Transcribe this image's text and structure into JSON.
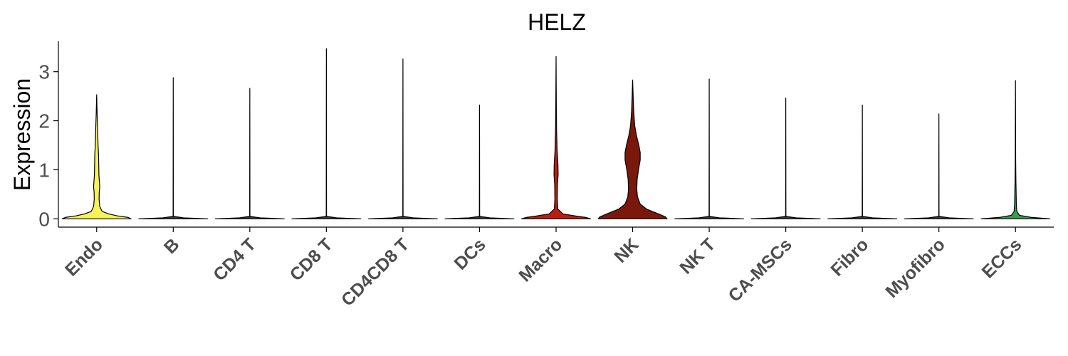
{
  "chart_data": {
    "type": "violin",
    "title": "HELZ",
    "xlabel": "",
    "ylabel": "Expression",
    "ylim": [
      -0.17,
      3.62
    ],
    "yticks": [
      0,
      1,
      2,
      3
    ],
    "grid": false,
    "legend": "none",
    "categories": [
      "Endo",
      "B",
      "CD4 T",
      "CD8 T",
      "CD4CD8 T",
      "DCs",
      "Macro",
      "NK",
      "NK T",
      "CA-MSCs",
      "Fibro",
      "Myofibro",
      "ECCs"
    ],
    "colors": [
      "#F7F15A",
      "#3A3A3A",
      "#3A3A3A",
      "#3A3A3A",
      "#3A3A3A",
      "#3A3A3A",
      "#B81E12",
      "#7A180C",
      "#3A3A3A",
      "#3A3A3A",
      "#3A3A3A",
      "#3A3A3A",
      "#3E9A52"
    ],
    "max_values": [
      2.53,
      2.88,
      2.66,
      3.47,
      3.26,
      2.32,
      3.31,
      2.83,
      2.85,
      2.46,
      2.32,
      2.14,
      2.82
    ],
    "density_profiles": [
      [
        [
          0,
          1.0
        ],
        [
          0.03,
          0.9
        ],
        [
          0.06,
          0.6
        ],
        [
          0.1,
          0.35
        ],
        [
          0.15,
          0.16
        ],
        [
          0.25,
          0.09
        ],
        [
          0.4,
          0.07
        ],
        [
          0.55,
          0.075
        ],
        [
          0.65,
          0.09
        ],
        [
          0.75,
          0.08
        ],
        [
          0.9,
          0.065
        ],
        [
          1.1,
          0.06
        ],
        [
          1.3,
          0.055
        ],
        [
          1.5,
          0.04
        ],
        [
          1.8,
          0.03
        ],
        [
          2.1,
          0.015
        ],
        [
          2.53,
          0.0
        ]
      ],
      [
        [
          0,
          1.0
        ],
        [
          0.02,
          0.3
        ],
        [
          0.05,
          0.004
        ],
        [
          2.88,
          0.0
        ]
      ],
      [
        [
          0,
          1.0
        ],
        [
          0.02,
          0.3
        ],
        [
          0.05,
          0.004
        ],
        [
          2.66,
          0.0
        ]
      ],
      [
        [
          0,
          1.0
        ],
        [
          0.02,
          0.3
        ],
        [
          0.05,
          0.004
        ],
        [
          3.47,
          0.0
        ]
      ],
      [
        [
          0,
          1.0
        ],
        [
          0.02,
          0.3
        ],
        [
          0.05,
          0.004
        ],
        [
          3.26,
          0.0
        ]
      ],
      [
        [
          0,
          1.0
        ],
        [
          0.02,
          0.3
        ],
        [
          0.05,
          0.004
        ],
        [
          2.32,
          0.0
        ]
      ],
      [
        [
          0,
          1.0
        ],
        [
          0.03,
          0.85
        ],
        [
          0.06,
          0.55
        ],
        [
          0.1,
          0.2
        ],
        [
          0.2,
          0.05
        ],
        [
          0.4,
          0.035
        ],
        [
          0.7,
          0.04
        ],
        [
          0.9,
          0.06
        ],
        [
          1.1,
          0.055
        ],
        [
          1.4,
          0.03
        ],
        [
          1.8,
          0.015
        ],
        [
          2.3,
          0.008
        ],
        [
          3.31,
          0.0
        ]
      ],
      [
        [
          0,
          1.0
        ],
        [
          0.04,
          0.95
        ],
        [
          0.1,
          0.75
        ],
        [
          0.2,
          0.4
        ],
        [
          0.3,
          0.22
        ],
        [
          0.45,
          0.14
        ],
        [
          0.6,
          0.12
        ],
        [
          0.8,
          0.13
        ],
        [
          1.0,
          0.17
        ],
        [
          1.2,
          0.22
        ],
        [
          1.35,
          0.22
        ],
        [
          1.5,
          0.18
        ],
        [
          1.7,
          0.11
        ],
        [
          1.9,
          0.06
        ],
        [
          2.2,
          0.03
        ],
        [
          2.5,
          0.015
        ],
        [
          2.83,
          0.0
        ]
      ],
      [
        [
          0,
          1.0
        ],
        [
          0.02,
          0.3
        ],
        [
          0.05,
          0.004
        ],
        [
          2.85,
          0.0
        ]
      ],
      [
        [
          0,
          1.0
        ],
        [
          0.02,
          0.3
        ],
        [
          0.05,
          0.004
        ],
        [
          2.46,
          0.0
        ]
      ],
      [
        [
          0,
          1.0
        ],
        [
          0.02,
          0.3
        ],
        [
          0.05,
          0.004
        ],
        [
          2.32,
          0.0
        ]
      ],
      [
        [
          0,
          1.0
        ],
        [
          0.02,
          0.3
        ],
        [
          0.05,
          0.004
        ],
        [
          2.14,
          0.0
        ]
      ],
      [
        [
          0,
          1.0
        ],
        [
          0.03,
          0.45
        ],
        [
          0.07,
          0.12
        ],
        [
          0.15,
          0.04
        ],
        [
          0.3,
          0.025
        ],
        [
          0.5,
          0.02
        ],
        [
          0.8,
          0.012
        ],
        [
          1.2,
          0.006
        ],
        [
          2.82,
          0.0
        ]
      ]
    ]
  }
}
